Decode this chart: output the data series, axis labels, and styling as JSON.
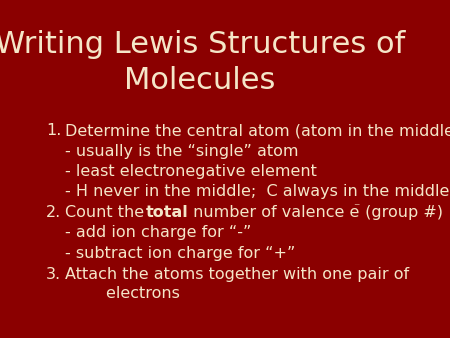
{
  "background_color": "#8B0000",
  "title_line1": "Writing Lewis Structures of",
  "title_line2": "Molecules",
  "title_color": "#F5E6C8",
  "title_fontsize": 22,
  "body_color": "#F5E6C8",
  "body_fontsize": 11.5,
  "items": [
    {
      "number": "1.",
      "text": "Determine the central atom (atom in the middle)",
      "sub": [
        "- usually is the “single” atom",
        "- least electronegative element",
        "- H never in the middle;  C always in the middle"
      ]
    },
    {
      "number": "2.",
      "text_parts": [
        {
          "text": "Count the ",
          "bold": false
        },
        {
          "text": "total",
          "bold": true
        },
        {
          "text": " number of valence e",
          "bold": false
        },
        {
          "text": "⁻",
          "bold": false,
          "superscript": true
        },
        {
          "text": " (group #)",
          "bold": false
        }
      ],
      "sub": [
        "- add ion charge for “-”",
        "- subtract ion charge for “+”"
      ]
    },
    {
      "number": "3.",
      "text": "Attach the atoms together with one pair of\n        electrons",
      "sub": []
    }
  ]
}
